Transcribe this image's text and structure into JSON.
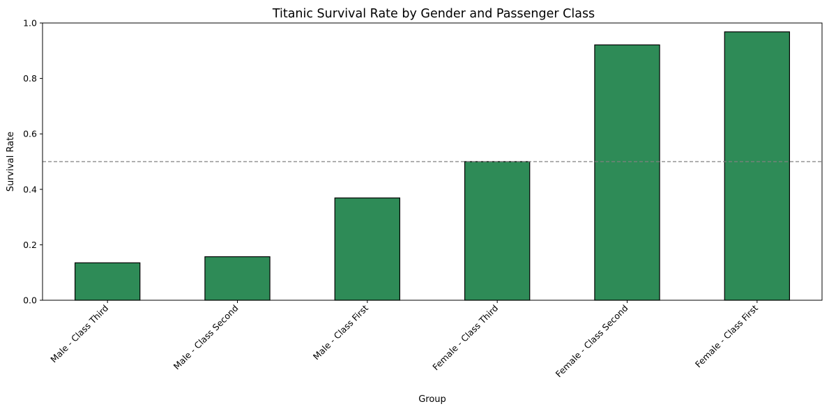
{
  "chart_data": {
    "type": "bar",
    "title": "Titanic Survival Rate by Gender and Passenger Class",
    "xlabel": "Group",
    "ylabel": "Survival Rate",
    "categories": [
      "Male - Class Third",
      "Male - Class Second",
      "Male - Class First",
      "Female - Class Third",
      "Female - Class Second",
      "Female - Class First"
    ],
    "values": [
      0.135,
      0.157,
      0.369,
      0.5,
      0.921,
      0.968
    ],
    "ylim": [
      0,
      1.0
    ],
    "yticks": [
      "0.0",
      "0.2",
      "0.4",
      "0.6",
      "0.8",
      "1.0"
    ],
    "reference_line": 0.5,
    "grid": false,
    "colors": {
      "bar_fill": "#2e8b57",
      "bar_edge": "#000000",
      "reference_line": "#808080"
    }
  }
}
